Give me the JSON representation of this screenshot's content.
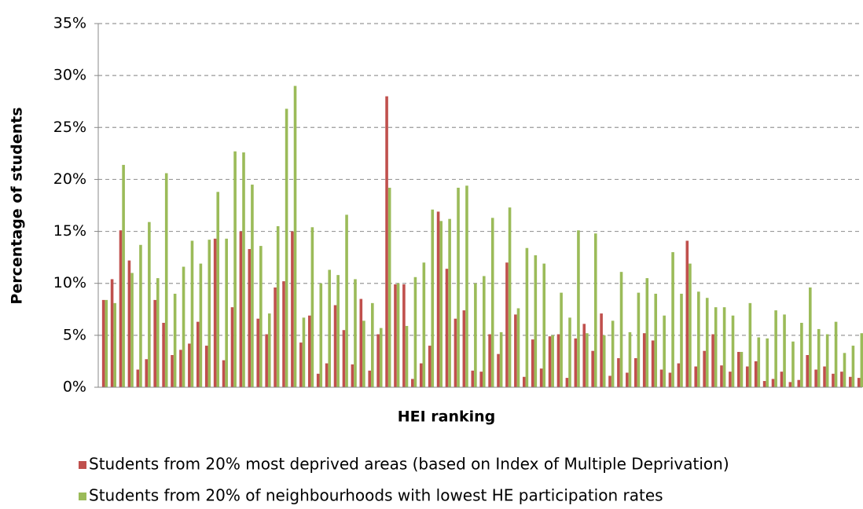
{
  "chart_data": {
    "type": "bar",
    "y_label": "Percentage of students",
    "x_label": "HEI ranking",
    "ylim": [
      0,
      35
    ],
    "yticks": [
      {
        "value": 0,
        "label": "0%"
      },
      {
        "value": 5,
        "label": "5%"
      },
      {
        "value": 10,
        "label": "10%"
      },
      {
        "value": 15,
        "label": "15%"
      },
      {
        "value": 20,
        "label": "20%"
      },
      {
        "value": 25,
        "label": "25%"
      },
      {
        "value": 30,
        "label": "30%"
      },
      {
        "value": 35,
        "label": "35%"
      }
    ],
    "grid": true,
    "legend": "bottom",
    "categories": [
      null,
      null,
      null,
      null,
      null,
      null,
      null,
      null,
      null,
      null,
      null,
      null,
      null,
      null,
      null,
      null,
      null,
      null,
      null,
      null,
      null,
      null,
      null,
      null,
      null,
      null,
      null,
      null,
      null,
      null,
      null,
      null,
      null,
      null,
      null,
      null,
      null,
      null,
      null,
      null,
      null,
      null,
      null,
      null,
      null,
      null,
      null,
      null,
      null,
      null,
      null,
      null,
      null,
      null,
      null,
      null,
      null,
      null,
      null,
      null,
      null,
      null,
      null,
      null,
      null,
      null,
      null,
      null,
      null,
      null,
      null,
      null,
      null,
      null,
      null,
      null,
      null,
      null,
      null,
      null,
      null,
      null,
      null,
      null,
      null,
      null,
      null,
      null,
      null
    ],
    "series": [
      {
        "name": "Students from 20% most deprived areas (based on Index of Multiple Deprivation)",
        "color": "#c0504d",
        "values": [
          8.4,
          10.4,
          15.1,
          12.2,
          1.7,
          2.7,
          8.4,
          6.2,
          3.1,
          3.6,
          4.2,
          6.3,
          4.0,
          14.3,
          2.6,
          7.7,
          15.0,
          13.3,
          6.6,
          5.1,
          9.6,
          10.2,
          15.0,
          4.3,
          6.9,
          1.3,
          2.3,
          7.9,
          5.5,
          2.2,
          8.5,
          1.6,
          5.1,
          28.0,
          9.9,
          9.9,
          0.8,
          2.3,
          4.0,
          16.9,
          11.4,
          6.6,
          7.4,
          1.6,
          1.5,
          5.1,
          3.2,
          12.0,
          7.0,
          1.0,
          4.6,
          1.8,
          4.9,
          5.1,
          0.9,
          4.7,
          6.1,
          3.5,
          7.1,
          1.1,
          2.8,
          1.4,
          2.8,
          5.2,
          4.5,
          1.7,
          1.4,
          2.3,
          14.1,
          2.0,
          3.5,
          5.1,
          2.1,
          1.5,
          3.4,
          2.0,
          2.5,
          0.6,
          0.8,
          1.5,
          0.5,
          0.7,
          3.1,
          1.7,
          2.0,
          1.3,
          1.5,
          1.0,
          0.9
        ]
      },
      {
        "name": "Students from 20% of neighbourhoods with lowest HE participation rates",
        "color": "#9bbb59",
        "values": [
          8.4,
          8.1,
          21.4,
          11.0,
          13.7,
          15.9,
          10.5,
          20.6,
          9.0,
          11.6,
          14.1,
          11.9,
          14.2,
          18.8,
          14.3,
          22.7,
          22.6,
          19.5,
          13.6,
          7.1,
          15.5,
          26.8,
          29.0,
          6.7,
          15.4,
          10.0,
          11.3,
          10.8,
          16.6,
          10.4,
          6.4,
          8.1,
          5.7,
          19.2,
          10.0,
          5.9,
          10.6,
          12.0,
          17.1,
          16.0,
          16.2,
          19.2,
          19.4,
          10.0,
          10.7,
          16.3,
          5.3,
          17.3,
          7.6,
          13.4,
          12.7,
          11.9,
          5.0,
          9.1,
          6.7,
          15.1,
          5.2,
          14.8,
          5.0,
          6.4,
          11.1,
          5.3,
          9.1,
          10.5,
          9.0,
          6.9,
          13.0,
          9.0,
          11.9,
          9.2,
          8.6,
          7.7,
          7.7,
          6.9,
          3.4,
          8.1,
          4.8,
          4.7,
          7.4,
          7.0,
          4.4,
          6.2,
          9.6,
          5.6,
          5.1,
          6.3,
          3.3,
          4.0,
          5.2
        ]
      }
    ]
  }
}
